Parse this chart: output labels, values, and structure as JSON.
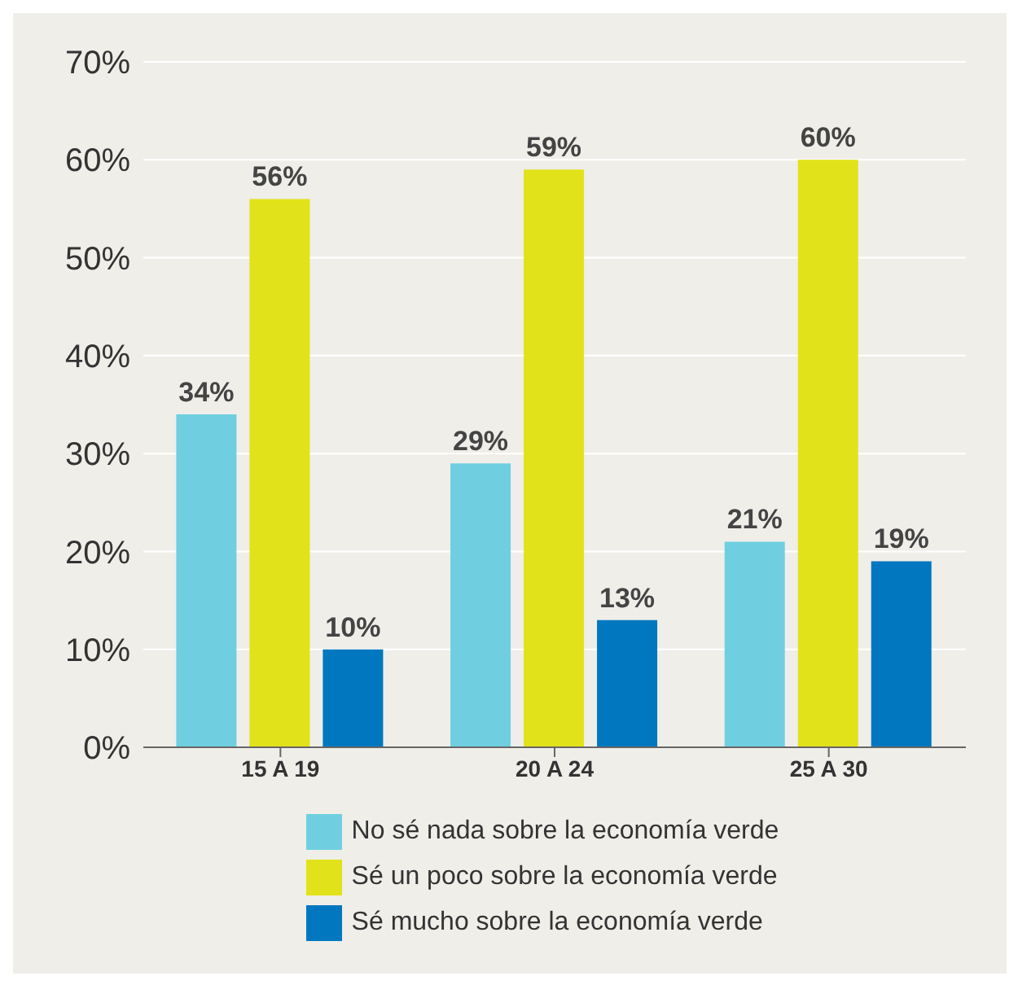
{
  "chart_data": {
    "type": "bar",
    "categories": [
      "15 A 19",
      "20 A 24",
      "25 A 30"
    ],
    "series": [
      {
        "name": "No sé nada sobre la economía verde",
        "color": "#6fcfe0",
        "values": [
          34,
          29,
          21
        ],
        "value_labels": [
          "34%",
          "29%",
          "21%"
        ]
      },
      {
        "name": "Sé un poco sobre la economía verde",
        "color": "#e2e21a",
        "values": [
          56,
          59,
          60
        ],
        "value_labels": [
          "56%",
          "59%",
          "60%"
        ]
      },
      {
        "name": "Sé mucho sobre la economía verde",
        "color": "#0077bf",
        "values": [
          10,
          13,
          19
        ],
        "value_labels": [
          "10%",
          "13%",
          "19%"
        ]
      }
    ],
    "ylim": [
      0,
      70
    ],
    "yticks": [
      {
        "value": 0,
        "label": "0%"
      },
      {
        "value": 10,
        "label": "10%"
      },
      {
        "value": 20,
        "label": "20%"
      },
      {
        "value": 30,
        "label": "30%"
      },
      {
        "value": 40,
        "label": "40%"
      },
      {
        "value": 50,
        "label": "50%"
      },
      {
        "value": 60,
        "label": "60%"
      },
      {
        "value": 70,
        "label": "70%"
      }
    ],
    "grid": "y",
    "legend": "bottom"
  }
}
